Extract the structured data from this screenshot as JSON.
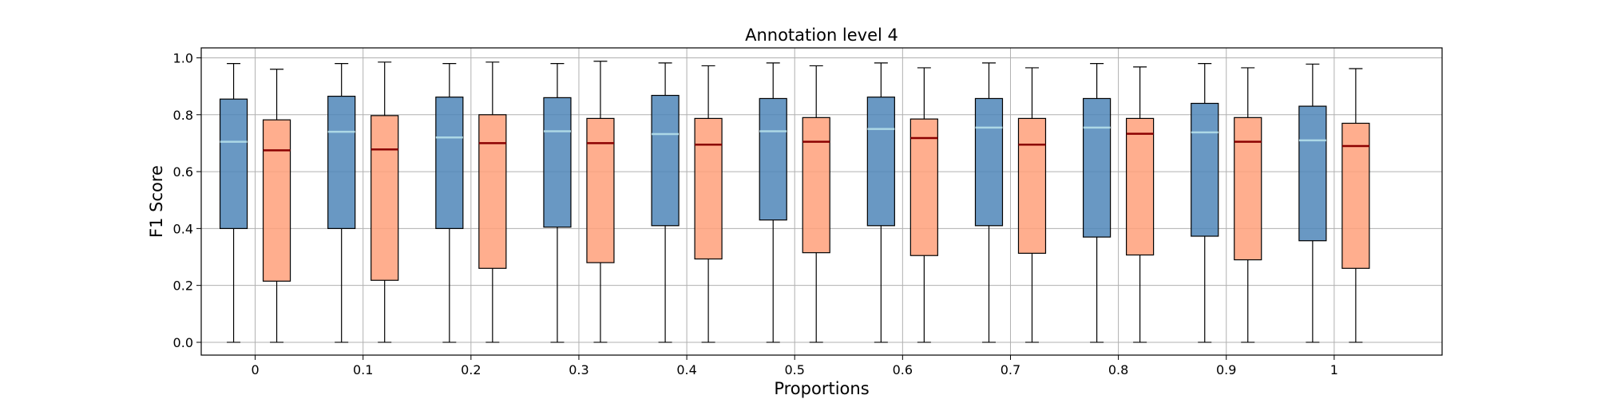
{
  "chart_data": {
    "type": "box",
    "title": "Annotation level 4",
    "xlabel": "Proportions",
    "ylabel": "F1 Score",
    "categories": [
      "0",
      "0.1",
      "0.2",
      "0.3",
      "0.4",
      "0.5",
      "0.6",
      "0.7",
      "0.8",
      "0.9",
      "1"
    ],
    "ylim": [
      -0.045,
      1.035
    ],
    "yticks": [
      0.0,
      0.2,
      0.4,
      0.6,
      0.8,
      1.0
    ],
    "ytick_labels": [
      "0.0",
      "0.2",
      "0.4",
      "0.6",
      "0.8",
      "1.0"
    ],
    "grid": true,
    "series": [
      {
        "color": "#4f86b9",
        "median_color": "#add8e6",
        "boxes": [
          {
            "min": 0.0,
            "q1": 0.4,
            "median": 0.705,
            "q3": 0.855,
            "max": 0.98
          },
          {
            "min": 0.0,
            "q1": 0.4,
            "median": 0.74,
            "q3": 0.865,
            "max": 0.98
          },
          {
            "min": 0.0,
            "q1": 0.4,
            "median": 0.72,
            "q3": 0.862,
            "max": 0.98
          },
          {
            "min": 0.0,
            "q1": 0.405,
            "median": 0.742,
            "q3": 0.86,
            "max": 0.98
          },
          {
            "min": 0.0,
            "q1": 0.41,
            "median": 0.732,
            "q3": 0.868,
            "max": 0.982
          },
          {
            "min": 0.0,
            "q1": 0.43,
            "median": 0.742,
            "q3": 0.857,
            "max": 0.982
          },
          {
            "min": 0.0,
            "q1": 0.41,
            "median": 0.75,
            "q3": 0.862,
            "max": 0.982
          },
          {
            "min": 0.0,
            "q1": 0.41,
            "median": 0.755,
            "q3": 0.857,
            "max": 0.982
          },
          {
            "min": 0.0,
            "q1": 0.37,
            "median": 0.755,
            "q3": 0.857,
            "max": 0.98
          },
          {
            "min": 0.0,
            "q1": 0.373,
            "median": 0.738,
            "q3": 0.84,
            "max": 0.98
          },
          {
            "min": 0.0,
            "q1": 0.357,
            "median": 0.71,
            "q3": 0.83,
            "max": 0.978
          }
        ]
      },
      {
        "color": "#ffa07a",
        "median_color": "#8b0000",
        "boxes": [
          {
            "min": 0.0,
            "q1": 0.215,
            "median": 0.675,
            "q3": 0.782,
            "max": 0.96
          },
          {
            "min": 0.0,
            "q1": 0.218,
            "median": 0.678,
            "q3": 0.797,
            "max": 0.985
          },
          {
            "min": 0.0,
            "q1": 0.26,
            "median": 0.7,
            "q3": 0.8,
            "max": 0.985
          },
          {
            "min": 0.0,
            "q1": 0.28,
            "median": 0.7,
            "q3": 0.787,
            "max": 0.988
          },
          {
            "min": 0.0,
            "q1": 0.293,
            "median": 0.695,
            "q3": 0.787,
            "max": 0.972
          },
          {
            "min": 0.0,
            "q1": 0.315,
            "median": 0.705,
            "q3": 0.79,
            "max": 0.972
          },
          {
            "min": 0.0,
            "q1": 0.305,
            "median": 0.718,
            "q3": 0.785,
            "max": 0.965
          },
          {
            "min": 0.0,
            "q1": 0.313,
            "median": 0.695,
            "q3": 0.787,
            "max": 0.965
          },
          {
            "min": 0.0,
            "q1": 0.307,
            "median": 0.733,
            "q3": 0.787,
            "max": 0.968
          },
          {
            "min": 0.0,
            "q1": 0.29,
            "median": 0.705,
            "q3": 0.79,
            "max": 0.965
          },
          {
            "min": 0.0,
            "q1": 0.26,
            "median": 0.69,
            "q3": 0.77,
            "max": 0.962
          }
        ]
      }
    ]
  }
}
